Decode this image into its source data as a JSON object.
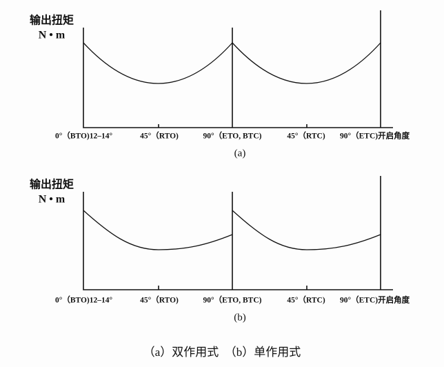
{
  "panels": [
    {
      "y_label": "输出扭矩",
      "y_unit": "N • m",
      "x_labels": [
        "0°（BTO)12–14°",
        "45°（RTO)",
        "90°（ETO, BTC)",
        "45°（RTC)",
        "90°（ETC)开启角度"
      ],
      "label": "(a)"
    },
    {
      "y_label": "输出扭矩",
      "y_unit": "N • m",
      "x_labels": [
        "0°（BTO)12–14°",
        "45°（RTO)",
        "90°（ETO, BTC)",
        "45°（RTC)",
        "90°（ETC)开启角度"
      ],
      "label": "(b)"
    }
  ],
  "caption": "（a）双作用式　（b）单作用式"
}
